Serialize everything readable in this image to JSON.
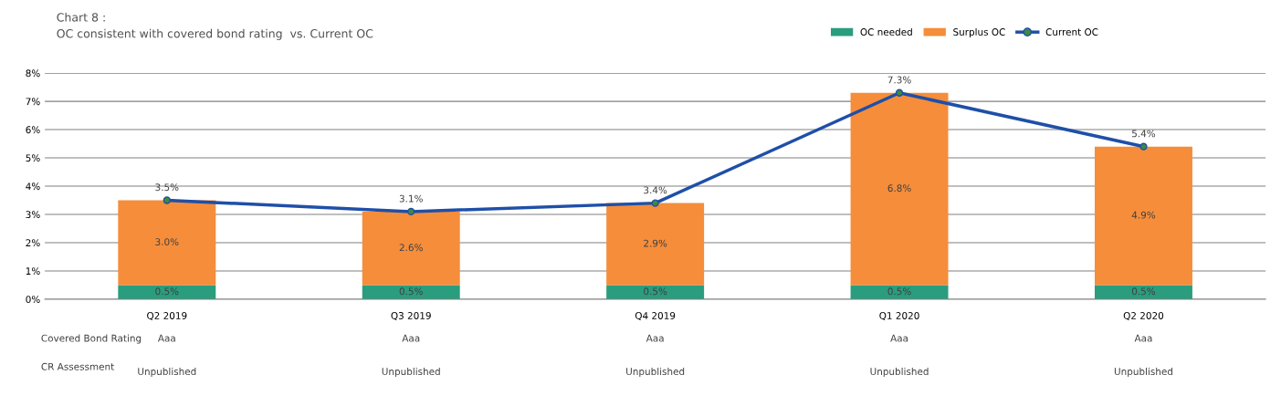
{
  "chart_data": {
    "type": "bar",
    "title": "Chart 8 :",
    "subtitle": "OC consistent with covered bond rating  vs. Current OC",
    "categories": [
      "Q2 2019",
      "Q3 2019",
      "Q4 2019",
      "Q1 2020",
      "Q2 2020"
    ],
    "stacked": true,
    "series": [
      {
        "name": "OC needed",
        "color": "#2a9d7e",
        "values": [
          0.5,
          0.5,
          0.5,
          0.5,
          0.5
        ],
        "value_labels": [
          "0.5%",
          "0.5%",
          "0.5%",
          "0.5%",
          "0.5%"
        ]
      },
      {
        "name": "Surplus OC",
        "color": "#f58d3b",
        "values": [
          3.0,
          2.6,
          2.9,
          6.8,
          4.9
        ],
        "value_labels": [
          "3.0%",
          "2.6%",
          "2.9%",
          "6.8%",
          "4.9%"
        ]
      },
      {
        "name": "Current OC",
        "type": "line",
        "color": "#1f4fa8",
        "marker": "circle",
        "line_style": "solid",
        "values": [
          3.5,
          3.1,
          3.4,
          7.3,
          5.4
        ],
        "value_labels": [
          "3.5%",
          "3.1%",
          "3.4%",
          "7.3%",
          "5.4%"
        ]
      }
    ],
    "ylim": [
      0,
      8
    ],
    "yticks": [
      {
        "value": 0,
        "label": "0%"
      },
      {
        "value": 1,
        "label": "1%"
      },
      {
        "value": 2,
        "label": "2%"
      },
      {
        "value": 3,
        "label": "3%"
      },
      {
        "value": 4,
        "label": "4%"
      },
      {
        "value": 5,
        "label": "5%"
      },
      {
        "value": 6,
        "label": "6%"
      },
      {
        "value": 7,
        "label": "7%"
      },
      {
        "value": 8,
        "label": "8%"
      }
    ],
    "grid": "y",
    "legend": "top right",
    "annotations": [
      "Covered Bond Rating",
      "Aaa",
      "Aaa",
      "Aaa",
      "Aaa",
      "Aaa",
      "CR Assessment",
      "Unpublished",
      "Unpublished",
      "Unpublished",
      "Unpublished",
      "Unpublished"
    ]
  }
}
